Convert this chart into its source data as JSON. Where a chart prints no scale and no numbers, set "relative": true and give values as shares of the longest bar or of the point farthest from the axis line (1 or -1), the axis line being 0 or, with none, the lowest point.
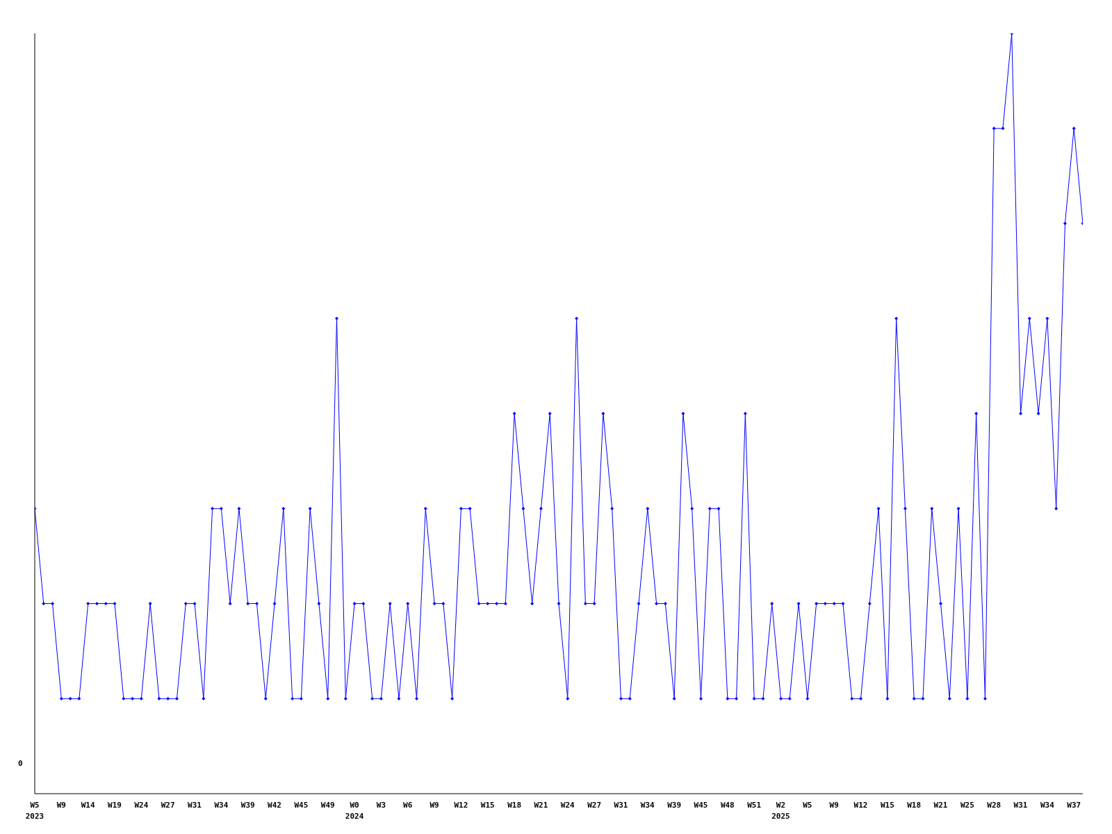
{
  "chart_data": {
    "type": "line",
    "relative": true,
    "annotations": [
      "0"
    ],
    "marker": "diamond",
    "grid": false,
    "legend": false,
    "categories": [
      "W5\n2023",
      null,
      null,
      "W9",
      null,
      null,
      "W14",
      null,
      null,
      "W19",
      null,
      null,
      "W24",
      null,
      null,
      "W27",
      null,
      null,
      "W31",
      null,
      null,
      "W34",
      null,
      null,
      "W39",
      null,
      null,
      "W42",
      null,
      null,
      "W45",
      null,
      null,
      "W49",
      null,
      null,
      "W0\n2024",
      null,
      null,
      "W3",
      null,
      null,
      "W6",
      null,
      null,
      "W9",
      null,
      null,
      "W12",
      null,
      null,
      "W15",
      null,
      null,
      "W18",
      null,
      null,
      "W21",
      null,
      null,
      "W24",
      null,
      null,
      "W27",
      null,
      null,
      "W31",
      null,
      null,
      "W34",
      null,
      null,
      "W39",
      null,
      null,
      "W45",
      null,
      null,
      "W48",
      null,
      null,
      "W51",
      null,
      null,
      "W2\n2025",
      null,
      null,
      "W5",
      null,
      null,
      "W9",
      null,
      null,
      "W12",
      null,
      null,
      "W15",
      null,
      null,
      "W18",
      null,
      null,
      "W21",
      null,
      null,
      "W25",
      null,
      null,
      "W28",
      null,
      null,
      "W31",
      null,
      null,
      "W34",
      null,
      null,
      "W37",
      null
    ],
    "series": [
      {
        "color": "#0000ff",
        "values": [
          0.375,
          0.25,
          0.25,
          0.125,
          0.125,
          0.125,
          0.25,
          0.25,
          0.25,
          0.25,
          0.125,
          0.125,
          0.125,
          0.25,
          0.125,
          0.125,
          0.125,
          0.25,
          0.25,
          0.125,
          0.375,
          0.375,
          0.25,
          0.375,
          0.25,
          0.25,
          0.125,
          0.25,
          0.375,
          0.125,
          0.125,
          0.375,
          0.25,
          0.125,
          0.625,
          0.125,
          0.25,
          0.25,
          0.125,
          0.125,
          0.25,
          0.125,
          0.25,
          0.125,
          0.375,
          0.25,
          0.25,
          0.125,
          0.375,
          0.375,
          0.25,
          0.25,
          0.25,
          0.25,
          0.5,
          0.375,
          0.25,
          0.375,
          0.5,
          0.25,
          0.125,
          0.625,
          0.25,
          0.25,
          0.5,
          0.375,
          0.125,
          0.125,
          0.25,
          0.375,
          0.25,
          0.25,
          0.125,
          0.5,
          0.375,
          0.125,
          0.375,
          0.375,
          0.125,
          0.125,
          0.5,
          0.125,
          0.125,
          0.25,
          0.125,
          0.125,
          0.25,
          0.125,
          0.25,
          0.25,
          0.25,
          0.25,
          0.125,
          0.125,
          0.25,
          0.375,
          0.125,
          0.625,
          0.375,
          0.125,
          0.125,
          0.375,
          0.25,
          0.125,
          0.375,
          0.125,
          0.5,
          0.125,
          0.875,
          0.875,
          1,
          0.5,
          0.625,
          0.5,
          0.625,
          0.375,
          0.75,
          0.875,
          0.75
        ]
      }
    ]
  }
}
